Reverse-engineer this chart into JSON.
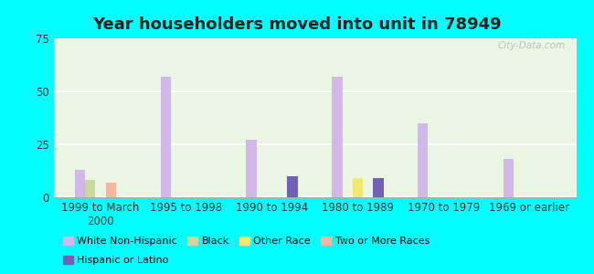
{
  "title": "Year householders moved into unit in 78949",
  "categories": [
    "1999 to March\n2000",
    "1995 to 1998",
    "1990 to 1994",
    "1980 to 1989",
    "1970 to 1979",
    "1969 or earlier"
  ],
  "series": {
    "White Non-Hispanic": [
      13,
      57,
      27,
      57,
      35,
      18
    ],
    "Black": [
      8,
      0,
      0,
      0,
      0,
      0
    ],
    "Other Race": [
      0,
      0,
      0,
      9,
      0,
      0
    ],
    "Two or More Races": [
      7,
      0,
      0,
      0,
      0,
      0
    ],
    "Hispanic or Latino": [
      0,
      0,
      10,
      9,
      0,
      0
    ]
  },
  "series_order": [
    "White Non-Hispanic",
    "Black",
    "Other Race",
    "Two or More Races",
    "Hispanic or Latino"
  ],
  "colors": {
    "White Non-Hispanic": "#d0b8e8",
    "Black": "#c8d898",
    "Other Race": "#f0e870",
    "Two or More Races": "#f0b8a0",
    "Hispanic or Latino": "#7060b8"
  },
  "ylim": [
    0,
    75
  ],
  "yticks": [
    0,
    25,
    50,
    75
  ],
  "bar_width": 0.12,
  "background_color": "#00ffff",
  "title_fontsize": 13,
  "axis_fontsize": 8.5,
  "legend_fontsize": 8
}
